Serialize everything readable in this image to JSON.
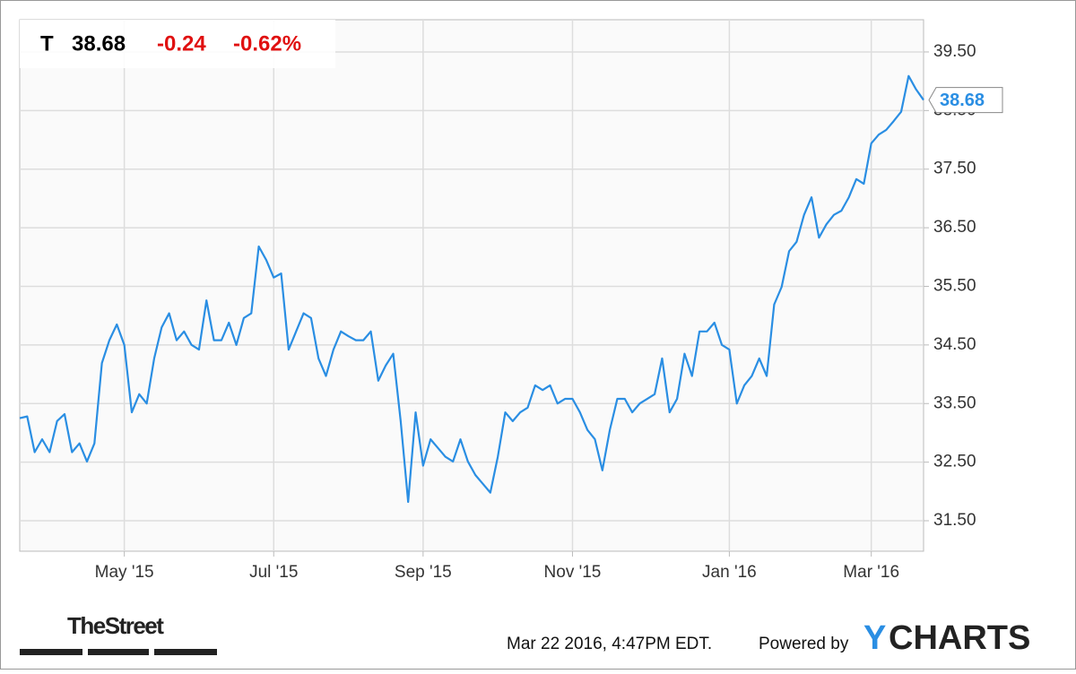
{
  "header": {
    "symbol": "T",
    "price": "38.68",
    "change": "-0.24",
    "change_percent": "-0.62%"
  },
  "chart_data": {
    "type": "line",
    "categories": [
      null,
      null,
      null,
      null,
      null,
      null,
      null,
      null,
      null,
      null,
      null,
      null,
      null,
      null,
      "May '15",
      null,
      null,
      null,
      null,
      null,
      null,
      null,
      null,
      null,
      null,
      null,
      null,
      null,
      null,
      null,
      null,
      null,
      null,
      null,
      "Jul '15",
      null,
      null,
      null,
      null,
      null,
      null,
      null,
      null,
      null,
      null,
      null,
      null,
      null,
      null,
      null,
      null,
      null,
      null,
      null,
      "Sep '15",
      null,
      null,
      null,
      null,
      null,
      null,
      null,
      null,
      null,
      null,
      null,
      null,
      null,
      null,
      null,
      null,
      null,
      null,
      null,
      "Nov '15",
      null,
      null,
      null,
      null,
      null,
      null,
      null,
      null,
      null,
      null,
      null,
      null,
      null,
      null,
      null,
      null,
      null,
      null,
      null,
      null,
      "Jan '16",
      null,
      null,
      null,
      null,
      null,
      null,
      null,
      null,
      null,
      null,
      null,
      null,
      null,
      null,
      null,
      null,
      null,
      null,
      "Mar '16",
      null,
      null,
      null,
      null,
      null,
      null,
      null
    ],
    "series": [
      {
        "name": "T",
        "color": "#2a8ee3",
        "values": [
          33.25,
          33.28,
          32.67,
          32.89,
          32.67,
          33.2,
          33.32,
          32.67,
          32.82,
          32.51,
          32.82,
          34.19,
          34.58,
          34.85,
          34.5,
          33.35,
          33.66,
          33.5,
          34.27,
          34.8,
          35.04,
          34.58,
          34.73,
          34.5,
          34.42,
          35.26,
          34.58,
          34.58,
          34.88,
          34.5,
          34.96,
          35.04,
          36.18,
          35.95,
          35.65,
          35.72,
          34.42,
          34.73,
          35.04,
          34.96,
          34.27,
          33.97,
          34.42,
          34.73,
          34.65,
          34.58,
          34.58,
          34.73,
          33.89,
          34.15,
          34.35,
          33.2,
          31.82,
          33.35,
          32.44,
          32.89,
          32.74,
          32.59,
          32.51,
          32.89,
          32.51,
          32.28,
          32.13,
          31.98,
          32.59,
          33.35,
          33.2,
          33.35,
          33.43,
          33.81,
          33.73,
          33.81,
          33.5,
          33.58,
          33.58,
          33.35,
          33.05,
          32.89,
          32.36,
          33.05,
          33.58,
          33.58,
          33.35,
          33.5,
          33.58,
          33.66,
          34.27,
          33.35,
          33.58,
          34.35,
          33.97,
          34.73,
          34.73,
          34.88,
          34.5,
          34.42,
          33.5,
          33.81,
          33.97,
          34.27,
          33.97,
          35.19,
          35.49,
          36.1,
          36.26,
          36.72,
          37.02,
          36.33,
          36.56,
          36.72,
          36.79,
          37.02,
          37.33,
          37.25,
          37.94,
          38.09,
          38.17,
          38.32,
          38.48,
          39.09,
          38.86,
          38.68
        ]
      }
    ],
    "last_label": "38.68",
    "ylim": [
      30.98,
      40.05
    ],
    "yticks": [
      {
        "value": 31.5,
        "label": "31.50"
      },
      {
        "value": 32.5,
        "label": "32.50"
      },
      {
        "value": 33.5,
        "label": "33.50"
      },
      {
        "value": 34.5,
        "label": "34.50"
      },
      {
        "value": 35.5,
        "label": "35.50"
      },
      {
        "value": 36.5,
        "label": "36.50"
      },
      {
        "value": 37.5,
        "label": "37.50"
      },
      {
        "value": 38.5,
        "label": "38.50"
      },
      {
        "value": 39.5,
        "label": "39.50"
      }
    ],
    "grid": true
  },
  "footer": {
    "brand": "TheStreet",
    "timestamp": "Mar 22 2016, 4:47PM EDT.",
    "powered_by": "Powered by",
    "provider_initial": "Y",
    "provider_rest": "CHARTS"
  }
}
